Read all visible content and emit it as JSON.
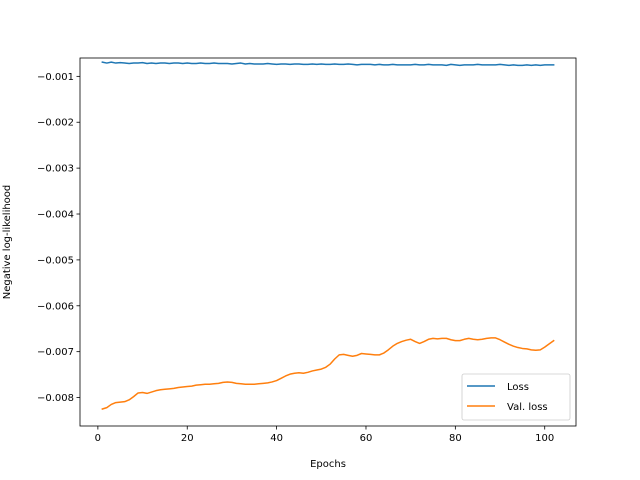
{
  "chart_data": {
    "type": "line",
    "title": "",
    "xlabel": "Epochs",
    "ylabel": "Negative log-likelihood",
    "xlim": [
      -4,
      107
    ],
    "ylim": [
      -0.00862,
      -0.0006
    ],
    "xticks": [
      0,
      20,
      40,
      60,
      80,
      100
    ],
    "yticks": [
      -0.001,
      -0.002,
      -0.003,
      -0.004,
      -0.005,
      -0.006,
      -0.007,
      -0.008
    ],
    "xtick_labels": [
      "0",
      "20",
      "40",
      "60",
      "80",
      "100"
    ],
    "ytick_labels": [
      "−0.001",
      "−0.002",
      "−0.003",
      "−0.004",
      "−0.005",
      "−0.006",
      "−0.007",
      "−0.008"
    ],
    "grid": false,
    "legend_position": "lower-right",
    "colors": {
      "loss": "#1f77b4",
      "val_loss": "#ff7f0e"
    },
    "series": [
      {
        "name": "Loss",
        "color": "#1f77b4",
        "x": [
          1,
          2,
          3,
          4,
          5,
          6,
          7,
          8,
          9,
          10,
          11,
          12,
          13,
          14,
          15,
          16,
          17,
          18,
          19,
          20,
          21,
          22,
          23,
          24,
          25,
          26,
          27,
          28,
          29,
          30,
          31,
          32,
          33,
          34,
          35,
          36,
          37,
          38,
          39,
          40,
          41,
          42,
          43,
          44,
          45,
          46,
          47,
          48,
          49,
          50,
          51,
          52,
          53,
          54,
          55,
          56,
          57,
          58,
          59,
          60,
          61,
          62,
          63,
          64,
          65,
          66,
          67,
          68,
          69,
          70,
          71,
          72,
          73,
          74,
          75,
          76,
          77,
          78,
          79,
          80,
          81,
          82,
          83,
          84,
          85,
          86,
          87,
          88,
          89,
          90,
          91,
          92,
          93,
          94,
          95,
          96,
          97,
          98,
          99,
          100,
          101,
          102
        ],
        "y": [
          -0.00069,
          -0.00071,
          -0.00069,
          -0.00071,
          -0.0007,
          -0.00071,
          -0.00072,
          -0.00071,
          -0.00071,
          -0.0007,
          -0.00072,
          -0.00071,
          -0.00072,
          -0.00071,
          -0.00071,
          -0.00072,
          -0.00071,
          -0.00071,
          -0.00072,
          -0.00071,
          -0.00072,
          -0.00072,
          -0.00071,
          -0.00072,
          -0.00072,
          -0.00071,
          -0.00072,
          -0.00072,
          -0.00072,
          -0.00073,
          -0.00072,
          -0.00071,
          -0.00073,
          -0.00072,
          -0.00073,
          -0.00073,
          -0.00073,
          -0.00072,
          -0.00073,
          -0.00074,
          -0.00073,
          -0.00073,
          -0.00074,
          -0.00073,
          -0.00073,
          -0.00074,
          -0.00074,
          -0.00073,
          -0.00074,
          -0.00073,
          -0.00074,
          -0.00074,
          -0.00073,
          -0.00074,
          -0.00074,
          -0.00073,
          -0.00074,
          -0.00075,
          -0.00074,
          -0.00074,
          -0.00074,
          -0.00075,
          -0.00074,
          -0.00075,
          -0.00075,
          -0.00074,
          -0.00075,
          -0.00075,
          -0.00075,
          -0.00075,
          -0.00074,
          -0.00075,
          -0.00075,
          -0.00074,
          -0.00075,
          -0.00075,
          -0.00075,
          -0.00076,
          -0.00074,
          -0.00075,
          -0.00076,
          -0.00075,
          -0.00075,
          -0.00075,
          -0.00074,
          -0.00075,
          -0.00075,
          -0.00075,
          -0.00075,
          -0.00074,
          -0.00075,
          -0.00076,
          -0.00075,
          -0.00076,
          -0.00076,
          -0.00075,
          -0.00076,
          -0.00075,
          -0.00076,
          -0.00075,
          -0.00075,
          -0.00075
        ]
      },
      {
        "name": "Val. loss",
        "color": "#ff7f0e",
        "x": [
          1,
          2,
          3,
          4,
          5,
          6,
          7,
          8,
          9,
          10,
          11,
          12,
          13,
          14,
          15,
          16,
          17,
          18,
          19,
          20,
          21,
          22,
          23,
          24,
          25,
          26,
          27,
          28,
          29,
          30,
          31,
          32,
          33,
          34,
          35,
          36,
          37,
          38,
          39,
          40,
          41,
          42,
          43,
          44,
          45,
          46,
          47,
          48,
          49,
          50,
          51,
          52,
          53,
          54,
          55,
          56,
          57,
          58,
          59,
          60,
          61,
          62,
          63,
          64,
          65,
          66,
          67,
          68,
          69,
          70,
          71,
          72,
          73,
          74,
          75,
          76,
          77,
          78,
          79,
          80,
          81,
          82,
          83,
          84,
          85,
          86,
          87,
          88,
          89,
          90,
          91,
          92,
          93,
          94,
          95,
          96,
          97,
          98,
          99,
          100,
          101,
          102
        ],
        "y": [
          -0.00825,
          -0.00822,
          -0.00815,
          -0.00811,
          -0.0081,
          -0.00809,
          -0.00805,
          -0.00798,
          -0.0079,
          -0.00789,
          -0.00791,
          -0.00788,
          -0.00785,
          -0.00783,
          -0.00782,
          -0.00781,
          -0.0078,
          -0.00778,
          -0.00777,
          -0.00776,
          -0.00775,
          -0.00773,
          -0.00772,
          -0.00771,
          -0.00771,
          -0.0077,
          -0.00769,
          -0.00767,
          -0.00766,
          -0.00767,
          -0.00769,
          -0.0077,
          -0.00771,
          -0.00771,
          -0.00771,
          -0.0077,
          -0.00769,
          -0.00768,
          -0.00766,
          -0.00763,
          -0.00758,
          -0.00753,
          -0.00749,
          -0.00747,
          -0.00746,
          -0.00747,
          -0.00745,
          -0.00742,
          -0.0074,
          -0.00738,
          -0.00734,
          -0.00727,
          -0.00716,
          -0.00707,
          -0.00706,
          -0.00708,
          -0.0071,
          -0.00708,
          -0.00704,
          -0.00705,
          -0.00706,
          -0.00707,
          -0.00707,
          -0.00703,
          -0.00696,
          -0.00688,
          -0.00682,
          -0.00678,
          -0.00675,
          -0.00673,
          -0.00678,
          -0.00682,
          -0.00678,
          -0.00673,
          -0.00671,
          -0.00672,
          -0.00671,
          -0.00671,
          -0.00674,
          -0.00676,
          -0.00676,
          -0.00673,
          -0.00671,
          -0.00673,
          -0.00674,
          -0.00673,
          -0.00671,
          -0.0067,
          -0.0067,
          -0.00674,
          -0.00679,
          -0.00684,
          -0.00688,
          -0.00691,
          -0.00693,
          -0.00694,
          -0.00696,
          -0.00697,
          -0.00696,
          -0.0069,
          -0.00683,
          -0.00676
        ]
      }
    ]
  }
}
